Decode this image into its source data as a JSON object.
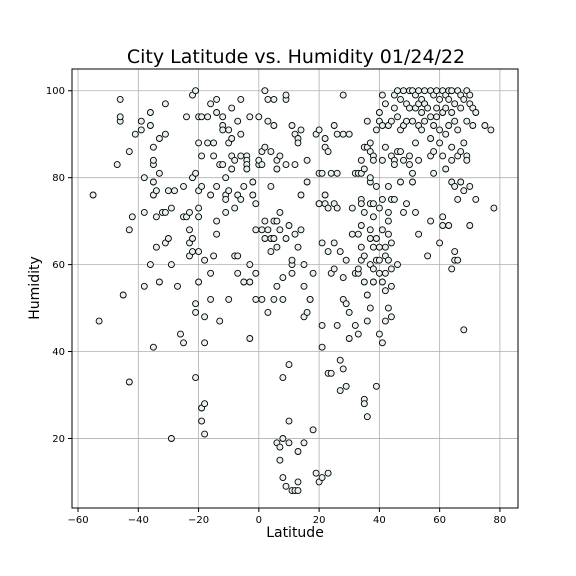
{
  "chart_data": {
    "type": "scatter",
    "title": "City Latitude vs. Humidity 01/24/22",
    "xlabel": "Latitude",
    "ylabel": "Humidity",
    "xlim": [
      -62,
      86
    ],
    "ylim": [
      4,
      105
    ],
    "xticks": [
      -60,
      -40,
      -20,
      0,
      20,
      40,
      60,
      80
    ],
    "yticks": [
      20,
      40,
      60,
      80,
      100
    ],
    "grid": true,
    "marker_color": "#e6f2ee",
    "edge_color": "#000000",
    "points": [
      [
        -55,
        76
      ],
      [
        -53,
        47
      ],
      [
        -47,
        83
      ],
      [
        -46,
        93
      ],
      [
        -46,
        98
      ],
      [
        -46,
        94
      ],
      [
        -45,
        53
      ],
      [
        -43,
        33
      ],
      [
        -43,
        68
      ],
      [
        -43,
        86
      ],
      [
        -42,
        71
      ],
      [
        -41,
        90
      ],
      [
        -39,
        93
      ],
      [
        -39,
        91
      ],
      [
        -38,
        72
      ],
      [
        -38,
        80
      ],
      [
        -38,
        55
      ],
      [
        -36,
        95
      ],
      [
        -36,
        92
      ],
      [
        -36,
        60
      ],
      [
        -35,
        41
      ],
      [
        -35,
        76
      ],
      [
        -35,
        83
      ],
      [
        -35,
        84
      ],
      [
        -35,
        87
      ],
      [
        -35,
        79
      ],
      [
        -34,
        71
      ],
      [
        -34,
        64
      ],
      [
        -34,
        77
      ],
      [
        -33,
        56
      ],
      [
        -33,
        81
      ],
      [
        -33,
        89
      ],
      [
        -32,
        72
      ],
      [
        -31,
        90
      ],
      [
        -31,
        65
      ],
      [
        -31,
        97
      ],
      [
        -31,
        72
      ],
      [
        -30,
        66
      ],
      [
        -30,
        77
      ],
      [
        -29,
        73
      ],
      [
        -29,
        60
      ],
      [
        -29,
        20
      ],
      [
        -28,
        77
      ],
      [
        -27,
        55
      ],
      [
        -26,
        44
      ],
      [
        -25,
        42
      ],
      [
        -25,
        71
      ],
      [
        -25,
        78
      ],
      [
        -24,
        94
      ],
      [
        -24,
        71
      ],
      [
        -23,
        68
      ],
      [
        -23,
        62
      ],
      [
        -23,
        65
      ],
      [
        -23,
        72
      ],
      [
        -22,
        99
      ],
      [
        -22,
        66
      ],
      [
        -22,
        63
      ],
      [
        -22,
        80
      ],
      [
        -21,
        81
      ],
      [
        -21,
        51
      ],
      [
        -21,
        49
      ],
      [
        -21,
        34
      ],
      [
        -21,
        100
      ],
      [
        -20,
        88
      ],
      [
        -20,
        94
      ],
      [
        -20,
        71
      ],
      [
        -20,
        73
      ],
      [
        -20,
        77
      ],
      [
        -20,
        56
      ],
      [
        -20,
        63
      ],
      [
        -19,
        78
      ],
      [
        -19,
        94
      ],
      [
        -19,
        85
      ],
      [
        -19,
        27
      ],
      [
        -19,
        24
      ],
      [
        -18,
        28
      ],
      [
        -18,
        48
      ],
      [
        -18,
        21
      ],
      [
        -18,
        42
      ],
      [
        -18,
        61
      ],
      [
        -17,
        94
      ],
      [
        -17,
        88
      ],
      [
        -16,
        97
      ],
      [
        -16,
        76
      ],
      [
        -16,
        58
      ],
      [
        -16,
        52
      ],
      [
        -15,
        62
      ],
      [
        -15,
        88
      ],
      [
        -15,
        85
      ],
      [
        -14,
        98
      ],
      [
        -14,
        95
      ],
      [
        -14,
        78
      ],
      [
        -14,
        70
      ],
      [
        -14,
        67
      ],
      [
        -13,
        83
      ],
      [
        -13,
        47
      ],
      [
        -12,
        94
      ],
      [
        -12,
        92
      ],
      [
        -12,
        91
      ],
      [
        -12,
        83
      ],
      [
        -11,
        80
      ],
      [
        -11,
        76
      ],
      [
        -11,
        75
      ],
      [
        -11,
        72
      ],
      [
        -10,
        91
      ],
      [
        -10,
        88
      ],
      [
        -10,
        77
      ],
      [
        -10,
        52
      ],
      [
        -9,
        89
      ],
      [
        -9,
        85
      ],
      [
        -9,
        82
      ],
      [
        -9,
        96
      ],
      [
        -8,
        62
      ],
      [
        -8,
        73
      ],
      [
        -8,
        84
      ],
      [
        -7,
        62
      ],
      [
        -7,
        58
      ],
      [
        -7,
        93
      ],
      [
        -7,
        76
      ],
      [
        -6,
        98
      ],
      [
        -6,
        90
      ],
      [
        -6,
        85
      ],
      [
        -6,
        75
      ],
      [
        -5,
        56
      ],
      [
        -5,
        78
      ],
      [
        -4,
        85
      ],
      [
        -4,
        84
      ],
      [
        -4,
        83
      ],
      [
        -4,
        82
      ],
      [
        -3,
        60
      ],
      [
        -3,
        43
      ],
      [
        -3,
        94
      ],
      [
        -3,
        56
      ],
      [
        -2,
        79
      ],
      [
        -2,
        76
      ],
      [
        -1,
        58
      ],
      [
        -1,
        68
      ],
      [
        -1,
        74
      ],
      [
        -1,
        52
      ],
      [
        0,
        83
      ],
      [
        0,
        84
      ],
      [
        0,
        94
      ],
      [
        1,
        83
      ],
      [
        1,
        86
      ],
      [
        1,
        52
      ],
      [
        1,
        68
      ],
      [
        2,
        87
      ],
      [
        2,
        100
      ],
      [
        2,
        70
      ],
      [
        2,
        66
      ],
      [
        3,
        98
      ],
      [
        3,
        93
      ],
      [
        3,
        68
      ],
      [
        3,
        49
      ],
      [
        4,
        63
      ],
      [
        4,
        66
      ],
      [
        4,
        78
      ],
      [
        4,
        86
      ],
      [
        5,
        70
      ],
      [
        5,
        92
      ],
      [
        5,
        98
      ],
      [
        5,
        52
      ],
      [
        5,
        66
      ],
      [
        6,
        64
      ],
      [
        6,
        84
      ],
      [
        6,
        82
      ],
      [
        6,
        70
      ],
      [
        6,
        55
      ],
      [
        6,
        19
      ],
      [
        7,
        15
      ],
      [
        7,
        18
      ],
      [
        7,
        68
      ],
      [
        7,
        85
      ],
      [
        7,
        72
      ],
      [
        8,
        52
      ],
      [
        8,
        57
      ],
      [
        8,
        11
      ],
      [
        8,
        34
      ],
      [
        8,
        20
      ],
      [
        9,
        9
      ],
      [
        9,
        98
      ],
      [
        9,
        99
      ],
      [
        9,
        83
      ],
      [
        9,
        66
      ],
      [
        10,
        37
      ],
      [
        10,
        24
      ],
      [
        10,
        69
      ],
      [
        10,
        19
      ],
      [
        11,
        58
      ],
      [
        11,
        60
      ],
      [
        11,
        61
      ],
      [
        11,
        8
      ],
      [
        11,
        92
      ],
      [
        12,
        67
      ],
      [
        12,
        83
      ],
      [
        12,
        90
      ],
      [
        12,
        8
      ],
      [
        13,
        64
      ],
      [
        13,
        89
      ],
      [
        13,
        10
      ],
      [
        13,
        88
      ],
      [
        13,
        17
      ],
      [
        13,
        8
      ],
      [
        14,
        91
      ],
      [
        14,
        76
      ],
      [
        14,
        68
      ],
      [
        15,
        48
      ],
      [
        15,
        60
      ],
      [
        15,
        55
      ],
      [
        15,
        19
      ],
      [
        16,
        79
      ],
      [
        16,
        84
      ],
      [
        16,
        49
      ],
      [
        17,
        52
      ],
      [
        17,
        52
      ],
      [
        18,
        58
      ],
      [
        18,
        22
      ],
      [
        19,
        12
      ],
      [
        19,
        90
      ],
      [
        20,
        74
      ],
      [
        20,
        10
      ],
      [
        20,
        74
      ],
      [
        20,
        91
      ],
      [
        20,
        81
      ],
      [
        21,
        41
      ],
      [
        21,
        11
      ],
      [
        21,
        65
      ],
      [
        21,
        46
      ],
      [
        21,
        81
      ],
      [
        22,
        76
      ],
      [
        22,
        74
      ],
      [
        22,
        87
      ],
      [
        22,
        89
      ],
      [
        23,
        63
      ],
      [
        23,
        86
      ],
      [
        23,
        73
      ],
      [
        23,
        35
      ],
      [
        23,
        12
      ],
      [
        24,
        35
      ],
      [
        24,
        58
      ],
      [
        24,
        81
      ],
      [
        25,
        92
      ],
      [
        25,
        59
      ],
      [
        25,
        74
      ],
      [
        25,
        65
      ],
      [
        26,
        81
      ],
      [
        26,
        46
      ],
      [
        26,
        90
      ],
      [
        26,
        73
      ],
      [
        27,
        63
      ],
      [
        27,
        31
      ],
      [
        27,
        38
      ],
      [
        28,
        90
      ],
      [
        28,
        36
      ],
      [
        28,
        52
      ],
      [
        28,
        57
      ],
      [
        28,
        99
      ],
      [
        29,
        51
      ],
      [
        29,
        32
      ],
      [
        29,
        61
      ],
      [
        30,
        49
      ],
      [
        30,
        43
      ],
      [
        30,
        90
      ],
      [
        31,
        73
      ],
      [
        31,
        67
      ],
      [
        32,
        58
      ],
      [
        32,
        46
      ],
      [
        32,
        81
      ],
      [
        33,
        67
      ],
      [
        33,
        44
      ],
      [
        33,
        81
      ],
      [
        33,
        58
      ],
      [
        33,
        59
      ],
      [
        34,
        61
      ],
      [
        34,
        84
      ],
      [
        34,
        81
      ],
      [
        34,
        75
      ],
      [
        34,
        64
      ],
      [
        34,
        74
      ],
      [
        34,
        69
      ],
      [
        35,
        87
      ],
      [
        35,
        82
      ],
      [
        35,
        72
      ],
      [
        35,
        62
      ],
      [
        35,
        56
      ],
      [
        35,
        29
      ],
      [
        35,
        28
      ],
      [
        36,
        87
      ],
      [
        36,
        93
      ],
      [
        36,
        47
      ],
      [
        36,
        53
      ],
      [
        36,
        25
      ],
      [
        37,
        60
      ],
      [
        37,
        68
      ],
      [
        37,
        66
      ],
      [
        37,
        74
      ],
      [
        37,
        79
      ],
      [
        37,
        80
      ],
      [
        37,
        86
      ],
      [
        37,
        88
      ],
      [
        37,
        50
      ],
      [
        38,
        85
      ],
      [
        38,
        84
      ],
      [
        38,
        74
      ],
      [
        38,
        71
      ],
      [
        38,
        64
      ],
      [
        38,
        59
      ],
      [
        38,
        56
      ],
      [
        39,
        32
      ],
      [
        39,
        91
      ],
      [
        39,
        78
      ],
      [
        39,
        66
      ],
      [
        39,
        61
      ],
      [
        40,
        95
      ],
      [
        40,
        93
      ],
      [
        40,
        73
      ],
      [
        40,
        64
      ],
      [
        40,
        61
      ],
      [
        40,
        58
      ],
      [
        40,
        44
      ],
      [
        41,
        99
      ],
      [
        41,
        92
      ],
      [
        41,
        84
      ],
      [
        41,
        75
      ],
      [
        41,
        68
      ],
      [
        41,
        56
      ],
      [
        41,
        42
      ],
      [
        42,
        97
      ],
      [
        42,
        87
      ],
      [
        42,
        64
      ],
      [
        42,
        62
      ],
      [
        42,
        58
      ],
      [
        42,
        54
      ],
      [
        42,
        47
      ],
      [
        43,
        92
      ],
      [
        43,
        78
      ],
      [
        43,
        72
      ],
      [
        43,
        70
      ],
      [
        43,
        61
      ],
      [
        43,
        50
      ],
      [
        43,
        67
      ],
      [
        44,
        93
      ],
      [
        44,
        85
      ],
      [
        44,
        75
      ],
      [
        44,
        65
      ],
      [
        44,
        59
      ],
      [
        44,
        55
      ],
      [
        44,
        48
      ],
      [
        45,
        99
      ],
      [
        45,
        96
      ],
      [
        45,
        84
      ],
      [
        45,
        83
      ],
      [
        45,
        75
      ],
      [
        46,
        100
      ],
      [
        46,
        94
      ],
      [
        46,
        86
      ],
      [
        46,
        60
      ],
      [
        47,
        98
      ],
      [
        47,
        91
      ],
      [
        47,
        86
      ],
      [
        47,
        79
      ],
      [
        48,
        100
      ],
      [
        48,
        92
      ],
      [
        48,
        84
      ],
      [
        48,
        72
      ],
      [
        49,
        97
      ],
      [
        49,
        93
      ],
      [
        49,
        74
      ],
      [
        50,
        100
      ],
      [
        50,
        96
      ],
      [
        50,
        85
      ],
      [
        50,
        83
      ],
      [
        51,
        100
      ],
      [
        51,
        93
      ],
      [
        51,
        81
      ],
      [
        51,
        79
      ],
      [
        52,
        99
      ],
      [
        52,
        96
      ],
      [
        52,
        88
      ],
      [
        52,
        72
      ],
      [
        53,
        100
      ],
      [
        53,
        97
      ],
      [
        53,
        92
      ],
      [
        53,
        67
      ],
      [
        53,
        84
      ],
      [
        54,
        98
      ],
      [
        54,
        95
      ],
      [
        54,
        91
      ],
      [
        55,
        100
      ],
      [
        55,
        97
      ],
      [
        55,
        93
      ],
      [
        56,
        62
      ],
      [
        56,
        96
      ],
      [
        57,
        100
      ],
      [
        57,
        94
      ],
      [
        57,
        89
      ],
      [
        57,
        85
      ],
      [
        57,
        70
      ],
      [
        58,
        99
      ],
      [
        58,
        92
      ],
      [
        58,
        86
      ],
      [
        58,
        81
      ],
      [
        59,
        100
      ],
      [
        59,
        96
      ],
      [
        59,
        94
      ],
      [
        60,
        98
      ],
      [
        60,
        91
      ],
      [
        60,
        88
      ],
      [
        60,
        65
      ],
      [
        61,
        100
      ],
      [
        61,
        95
      ],
      [
        61,
        85
      ],
      [
        61,
        71
      ],
      [
        61,
        69
      ],
      [
        62,
        99
      ],
      [
        62,
        96
      ],
      [
        62,
        90
      ],
      [
        62,
        82
      ],
      [
        63,
        100
      ],
      [
        63,
        98
      ],
      [
        63,
        92
      ],
      [
        63,
        69
      ],
      [
        64,
        100
      ],
      [
        64,
        95
      ],
      [
        64,
        87
      ],
      [
        64,
        84
      ],
      [
        64,
        79
      ],
      [
        64,
        59
      ],
      [
        65,
        97
      ],
      [
        65,
        93
      ],
      [
        65,
        78
      ],
      [
        65,
        61
      ],
      [
        65,
        63
      ],
      [
        66,
        100
      ],
      [
        66,
        91
      ],
      [
        66,
        85
      ],
      [
        66,
        75
      ],
      [
        66,
        61
      ],
      [
        67,
        99
      ],
      [
        67,
        96
      ],
      [
        67,
        86
      ],
      [
        67,
        79
      ],
      [
        68,
        98
      ],
      [
        68,
        88
      ],
      [
        68,
        77
      ],
      [
        68,
        45
      ],
      [
        69,
        100
      ],
      [
        69,
        93
      ],
      [
        69,
        85
      ],
      [
        69,
        84
      ],
      [
        70,
        99
      ],
      [
        70,
        97
      ],
      [
        70,
        78
      ],
      [
        70,
        69
      ],
      [
        71,
        96
      ],
      [
        71,
        92
      ],
      [
        72,
        95
      ],
      [
        72,
        75
      ],
      [
        75,
        92
      ],
      [
        77,
        91
      ],
      [
        78,
        73
      ]
    ]
  }
}
